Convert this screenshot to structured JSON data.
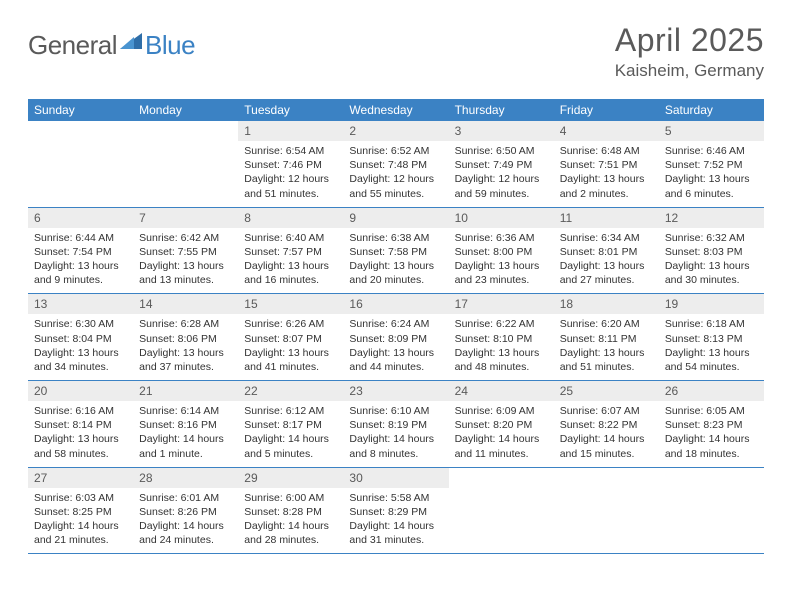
{
  "logo": {
    "text1": "General",
    "text2": "Blue"
  },
  "title": "April 2025",
  "location": "Kaisheim, Germany",
  "colors": {
    "header_bg": "#3b82c4",
    "header_text": "#ffffff",
    "daynum_bg": "#ededed",
    "text": "#5a5a5a",
    "body_text": "#333333",
    "page_bg": "#ffffff"
  },
  "weekdays": [
    "Sunday",
    "Monday",
    "Tuesday",
    "Wednesday",
    "Thursday",
    "Friday",
    "Saturday"
  ],
  "weeks": [
    [
      {
        "n": "",
        "sr": "",
        "ss": "",
        "dl": ""
      },
      {
        "n": "",
        "sr": "",
        "ss": "",
        "dl": ""
      },
      {
        "n": "1",
        "sr": "Sunrise: 6:54 AM",
        "ss": "Sunset: 7:46 PM",
        "dl": "Daylight: 12 hours and 51 minutes."
      },
      {
        "n": "2",
        "sr": "Sunrise: 6:52 AM",
        "ss": "Sunset: 7:48 PM",
        "dl": "Daylight: 12 hours and 55 minutes."
      },
      {
        "n": "3",
        "sr": "Sunrise: 6:50 AM",
        "ss": "Sunset: 7:49 PM",
        "dl": "Daylight: 12 hours and 59 minutes."
      },
      {
        "n": "4",
        "sr": "Sunrise: 6:48 AM",
        "ss": "Sunset: 7:51 PM",
        "dl": "Daylight: 13 hours and 2 minutes."
      },
      {
        "n": "5",
        "sr": "Sunrise: 6:46 AM",
        "ss": "Sunset: 7:52 PM",
        "dl": "Daylight: 13 hours and 6 minutes."
      }
    ],
    [
      {
        "n": "6",
        "sr": "Sunrise: 6:44 AM",
        "ss": "Sunset: 7:54 PM",
        "dl": "Daylight: 13 hours and 9 minutes."
      },
      {
        "n": "7",
        "sr": "Sunrise: 6:42 AM",
        "ss": "Sunset: 7:55 PM",
        "dl": "Daylight: 13 hours and 13 minutes."
      },
      {
        "n": "8",
        "sr": "Sunrise: 6:40 AM",
        "ss": "Sunset: 7:57 PM",
        "dl": "Daylight: 13 hours and 16 minutes."
      },
      {
        "n": "9",
        "sr": "Sunrise: 6:38 AM",
        "ss": "Sunset: 7:58 PM",
        "dl": "Daylight: 13 hours and 20 minutes."
      },
      {
        "n": "10",
        "sr": "Sunrise: 6:36 AM",
        "ss": "Sunset: 8:00 PM",
        "dl": "Daylight: 13 hours and 23 minutes."
      },
      {
        "n": "11",
        "sr": "Sunrise: 6:34 AM",
        "ss": "Sunset: 8:01 PM",
        "dl": "Daylight: 13 hours and 27 minutes."
      },
      {
        "n": "12",
        "sr": "Sunrise: 6:32 AM",
        "ss": "Sunset: 8:03 PM",
        "dl": "Daylight: 13 hours and 30 minutes."
      }
    ],
    [
      {
        "n": "13",
        "sr": "Sunrise: 6:30 AM",
        "ss": "Sunset: 8:04 PM",
        "dl": "Daylight: 13 hours and 34 minutes."
      },
      {
        "n": "14",
        "sr": "Sunrise: 6:28 AM",
        "ss": "Sunset: 8:06 PM",
        "dl": "Daylight: 13 hours and 37 minutes."
      },
      {
        "n": "15",
        "sr": "Sunrise: 6:26 AM",
        "ss": "Sunset: 8:07 PM",
        "dl": "Daylight: 13 hours and 41 minutes."
      },
      {
        "n": "16",
        "sr": "Sunrise: 6:24 AM",
        "ss": "Sunset: 8:09 PM",
        "dl": "Daylight: 13 hours and 44 minutes."
      },
      {
        "n": "17",
        "sr": "Sunrise: 6:22 AM",
        "ss": "Sunset: 8:10 PM",
        "dl": "Daylight: 13 hours and 48 minutes."
      },
      {
        "n": "18",
        "sr": "Sunrise: 6:20 AM",
        "ss": "Sunset: 8:11 PM",
        "dl": "Daylight: 13 hours and 51 minutes."
      },
      {
        "n": "19",
        "sr": "Sunrise: 6:18 AM",
        "ss": "Sunset: 8:13 PM",
        "dl": "Daylight: 13 hours and 54 minutes."
      }
    ],
    [
      {
        "n": "20",
        "sr": "Sunrise: 6:16 AM",
        "ss": "Sunset: 8:14 PM",
        "dl": "Daylight: 13 hours and 58 minutes."
      },
      {
        "n": "21",
        "sr": "Sunrise: 6:14 AM",
        "ss": "Sunset: 8:16 PM",
        "dl": "Daylight: 14 hours and 1 minute."
      },
      {
        "n": "22",
        "sr": "Sunrise: 6:12 AM",
        "ss": "Sunset: 8:17 PM",
        "dl": "Daylight: 14 hours and 5 minutes."
      },
      {
        "n": "23",
        "sr": "Sunrise: 6:10 AM",
        "ss": "Sunset: 8:19 PM",
        "dl": "Daylight: 14 hours and 8 minutes."
      },
      {
        "n": "24",
        "sr": "Sunrise: 6:09 AM",
        "ss": "Sunset: 8:20 PM",
        "dl": "Daylight: 14 hours and 11 minutes."
      },
      {
        "n": "25",
        "sr": "Sunrise: 6:07 AM",
        "ss": "Sunset: 8:22 PM",
        "dl": "Daylight: 14 hours and 15 minutes."
      },
      {
        "n": "26",
        "sr": "Sunrise: 6:05 AM",
        "ss": "Sunset: 8:23 PM",
        "dl": "Daylight: 14 hours and 18 minutes."
      }
    ],
    [
      {
        "n": "27",
        "sr": "Sunrise: 6:03 AM",
        "ss": "Sunset: 8:25 PM",
        "dl": "Daylight: 14 hours and 21 minutes."
      },
      {
        "n": "28",
        "sr": "Sunrise: 6:01 AM",
        "ss": "Sunset: 8:26 PM",
        "dl": "Daylight: 14 hours and 24 minutes."
      },
      {
        "n": "29",
        "sr": "Sunrise: 6:00 AM",
        "ss": "Sunset: 8:28 PM",
        "dl": "Daylight: 14 hours and 28 minutes."
      },
      {
        "n": "30",
        "sr": "Sunrise: 5:58 AM",
        "ss": "Sunset: 8:29 PM",
        "dl": "Daylight: 14 hours and 31 minutes."
      },
      {
        "n": "",
        "sr": "",
        "ss": "",
        "dl": ""
      },
      {
        "n": "",
        "sr": "",
        "ss": "",
        "dl": ""
      },
      {
        "n": "",
        "sr": "",
        "ss": "",
        "dl": ""
      }
    ]
  ]
}
